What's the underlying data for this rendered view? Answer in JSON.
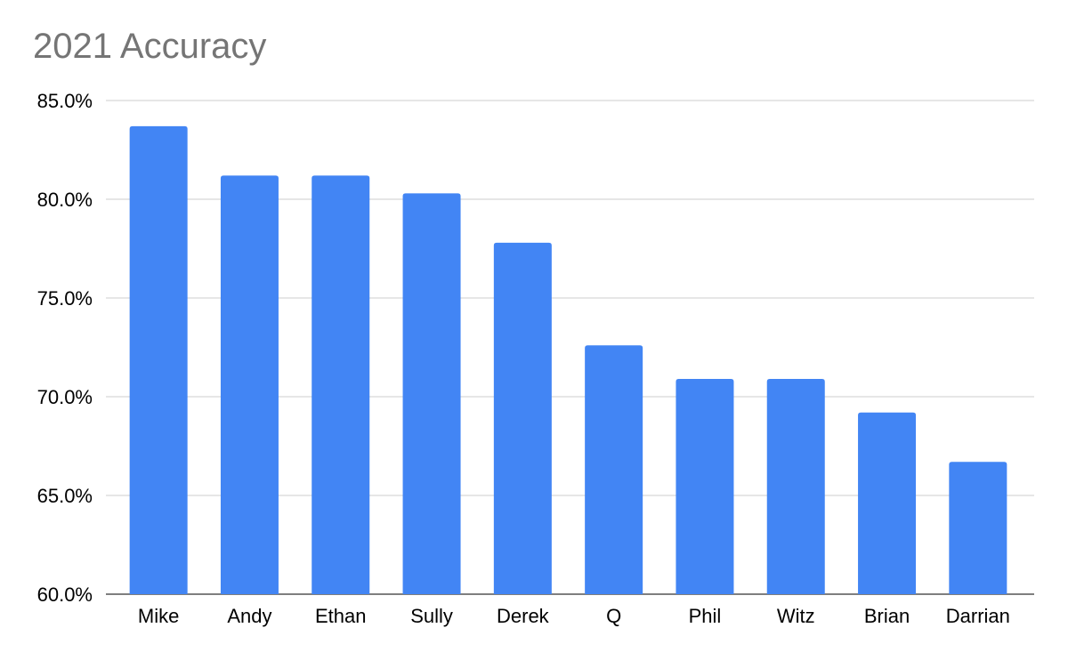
{
  "chart_data": {
    "type": "bar",
    "title": "2021 Accuracy",
    "xlabel": "",
    "ylabel": "",
    "categories": [
      "Mike",
      "Andy",
      "Ethan",
      "Sully",
      "Derek",
      "Q",
      "Phil",
      "Witz",
      "Brian",
      "Darrian"
    ],
    "values": [
      83.7,
      81.2,
      81.2,
      80.3,
      77.8,
      72.6,
      70.9,
      70.9,
      69.2,
      66.7
    ],
    "ylim": [
      60,
      85
    ],
    "yticks": [
      "60.0%",
      "65.0%",
      "70.0%",
      "75.0%",
      "80.0%",
      "85.0%"
    ],
    "value_unit": "%",
    "grid": true,
    "legend": "none",
    "bar_color": "#4285f4",
    "grid_color": "#cccccc",
    "title_color": "#757575",
    "label_color": "#000000"
  }
}
